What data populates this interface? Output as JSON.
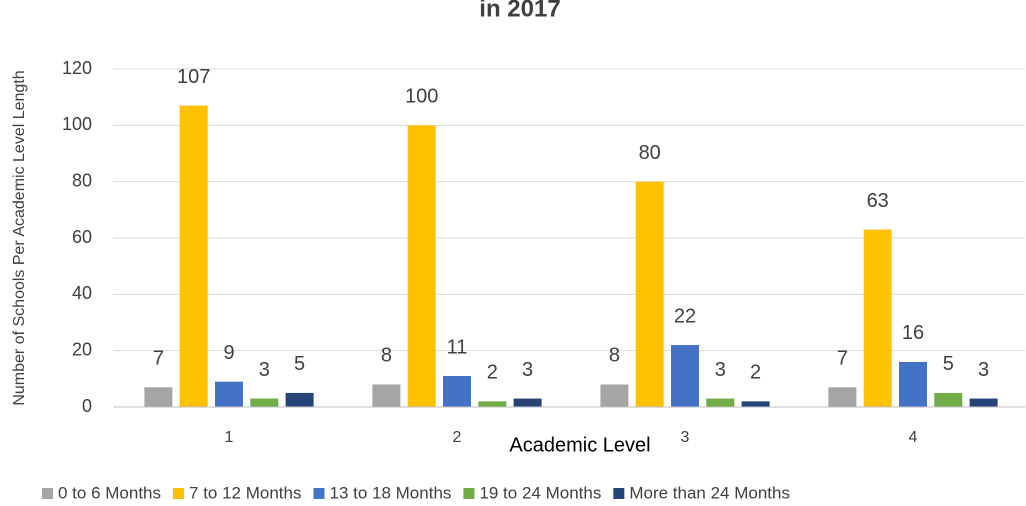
{
  "chart_data": {
    "type": "bar",
    "title": "in 2017",
    "x_label": "Academic Level",
    "y_label": "Number of Schools Per Academic Level Length",
    "categories": [
      "1",
      "2",
      "3",
      "4"
    ],
    "series": [
      {
        "name": "0 to 6 Months",
        "color": "#a5a5a5",
        "values": [
          7,
          8,
          8,
          7
        ]
      },
      {
        "name": "7 to 12 Months",
        "color": "#ffc000",
        "values": [
          107,
          100,
          80,
          63
        ]
      },
      {
        "name": "13 to 18 Months",
        "color": "#4472c4",
        "values": [
          9,
          11,
          22,
          16
        ]
      },
      {
        "name": "19 to 24 Months",
        "color": "#70ad47",
        "values": [
          3,
          2,
          3,
          5
        ]
      },
      {
        "name": "More than 24 Months",
        "color": "#264478",
        "values": [
          5,
          3,
          2,
          3
        ]
      }
    ],
    "ylim": [
      0,
      120
    ],
    "yticks": [
      0,
      20,
      40,
      60,
      80,
      100,
      120
    ],
    "grid": true,
    "legend": "bottom"
  }
}
